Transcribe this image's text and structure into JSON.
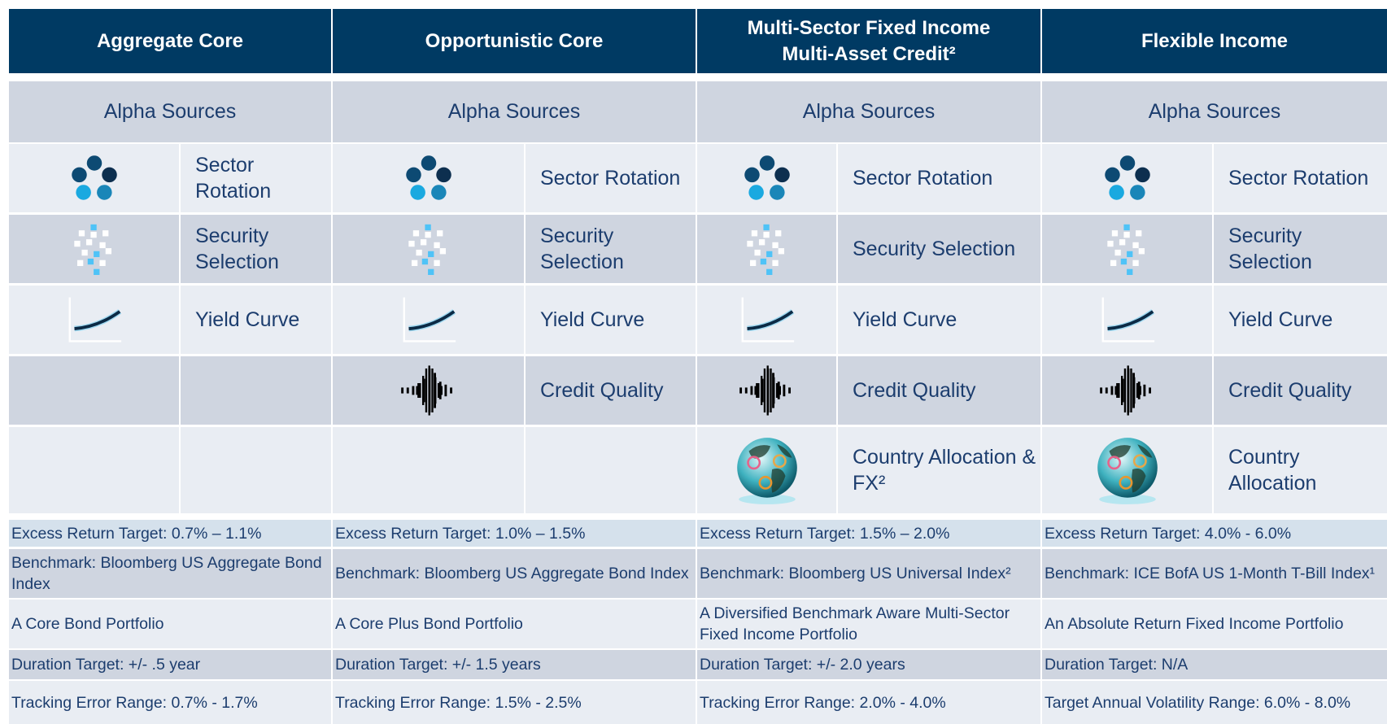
{
  "columns": [
    {
      "header": "Aggregate Core",
      "alpha_title": "Alpha Sources",
      "sources": [
        "Sector Rotation",
        "Security Selection",
        "Yield Curve",
        null,
        null
      ],
      "info": [
        "Excess Return Target: 0.7% – 1.1%",
        "Benchmark: Bloomberg US Aggregate Bond Index",
        "A Core Bond Portfolio",
        "Duration Target: +/- .5 year",
        "Tracking Error Range: 0.7% - 1.7%"
      ]
    },
    {
      "header": "Opportunistic Core",
      "alpha_title": "Alpha Sources",
      "sources": [
        "Sector Rotation",
        "Security Selection",
        "Yield Curve",
        "Credit Quality",
        null
      ],
      "info": [
        "Excess Return Target: 1.0% – 1.5%",
        "Benchmark: Bloomberg US Aggregate Bond Index",
        "A Core Plus Bond Portfolio",
        "Duration Target: +/- 1.5 years",
        "Tracking Error Range: 1.5% - 2.5%"
      ]
    },
    {
      "header": "Multi-Sector Fixed Income\nMulti-Asset Credit²",
      "alpha_title": "Alpha Sources",
      "sources": [
        "Sector Rotation",
        "Security Selection",
        "Yield Curve",
        "Credit Quality",
        "Country Allocation & FX²"
      ],
      "info": [
        "Excess Return Target: 1.5% – 2.0%",
        "Benchmark: Bloomberg US Universal Index²",
        "A Diversified Benchmark Aware Multi-Sector Fixed Income Portfolio",
        "Duration Target: +/- 2.0 years",
        "Tracking Error Range: 2.0% - 4.0%"
      ]
    },
    {
      "header": "Flexible Income",
      "alpha_title": "Alpha Sources",
      "sources": [
        "Sector Rotation",
        "Security Selection",
        "Yield Curve",
        "Credit Quality",
        "Country Allocation"
      ],
      "info": [
        "Excess Return Target: 4.0% - 6.0%",
        "Benchmark: ICE BofA US 1-Month T-Bill Index¹",
        "An Absolute Return Fixed Income Portfolio",
        "Duration Target: N/A",
        "Target Annual Volatility Range: 6.0% - 8.0%"
      ]
    }
  ]
}
